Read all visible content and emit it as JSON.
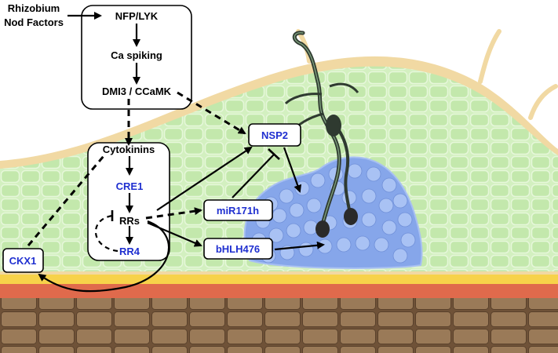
{
  "labels": {
    "input_line1": "Rhizobium",
    "input_line2": "Nod Factors",
    "nfp_lyk": "NFP/LYK",
    "ca_spiking": "Ca spiking",
    "dmi3_ccamk": "DMI3 / CCaMK",
    "cytokinins": "Cytokinins",
    "cre1": "CRE1",
    "rrs": "RRs",
    "rr4": "RR4",
    "ckx1": "CKX1",
    "nsp2": "NSP2",
    "mir171h": "miR171h",
    "bhlh476": "bHLH476"
  },
  "colors": {
    "black_text": "#000000",
    "gene_text": "#1f2fd0",
    "cortex_green": "#cdeeb8",
    "epidermis_tan": "#f1d9a3",
    "nodule_blue": "#7f9fe6",
    "endodermis_yellow": "#f7d24a",
    "pericycle_red": "#e06a4c",
    "stele_brown": "#8a6a4a"
  }
}
